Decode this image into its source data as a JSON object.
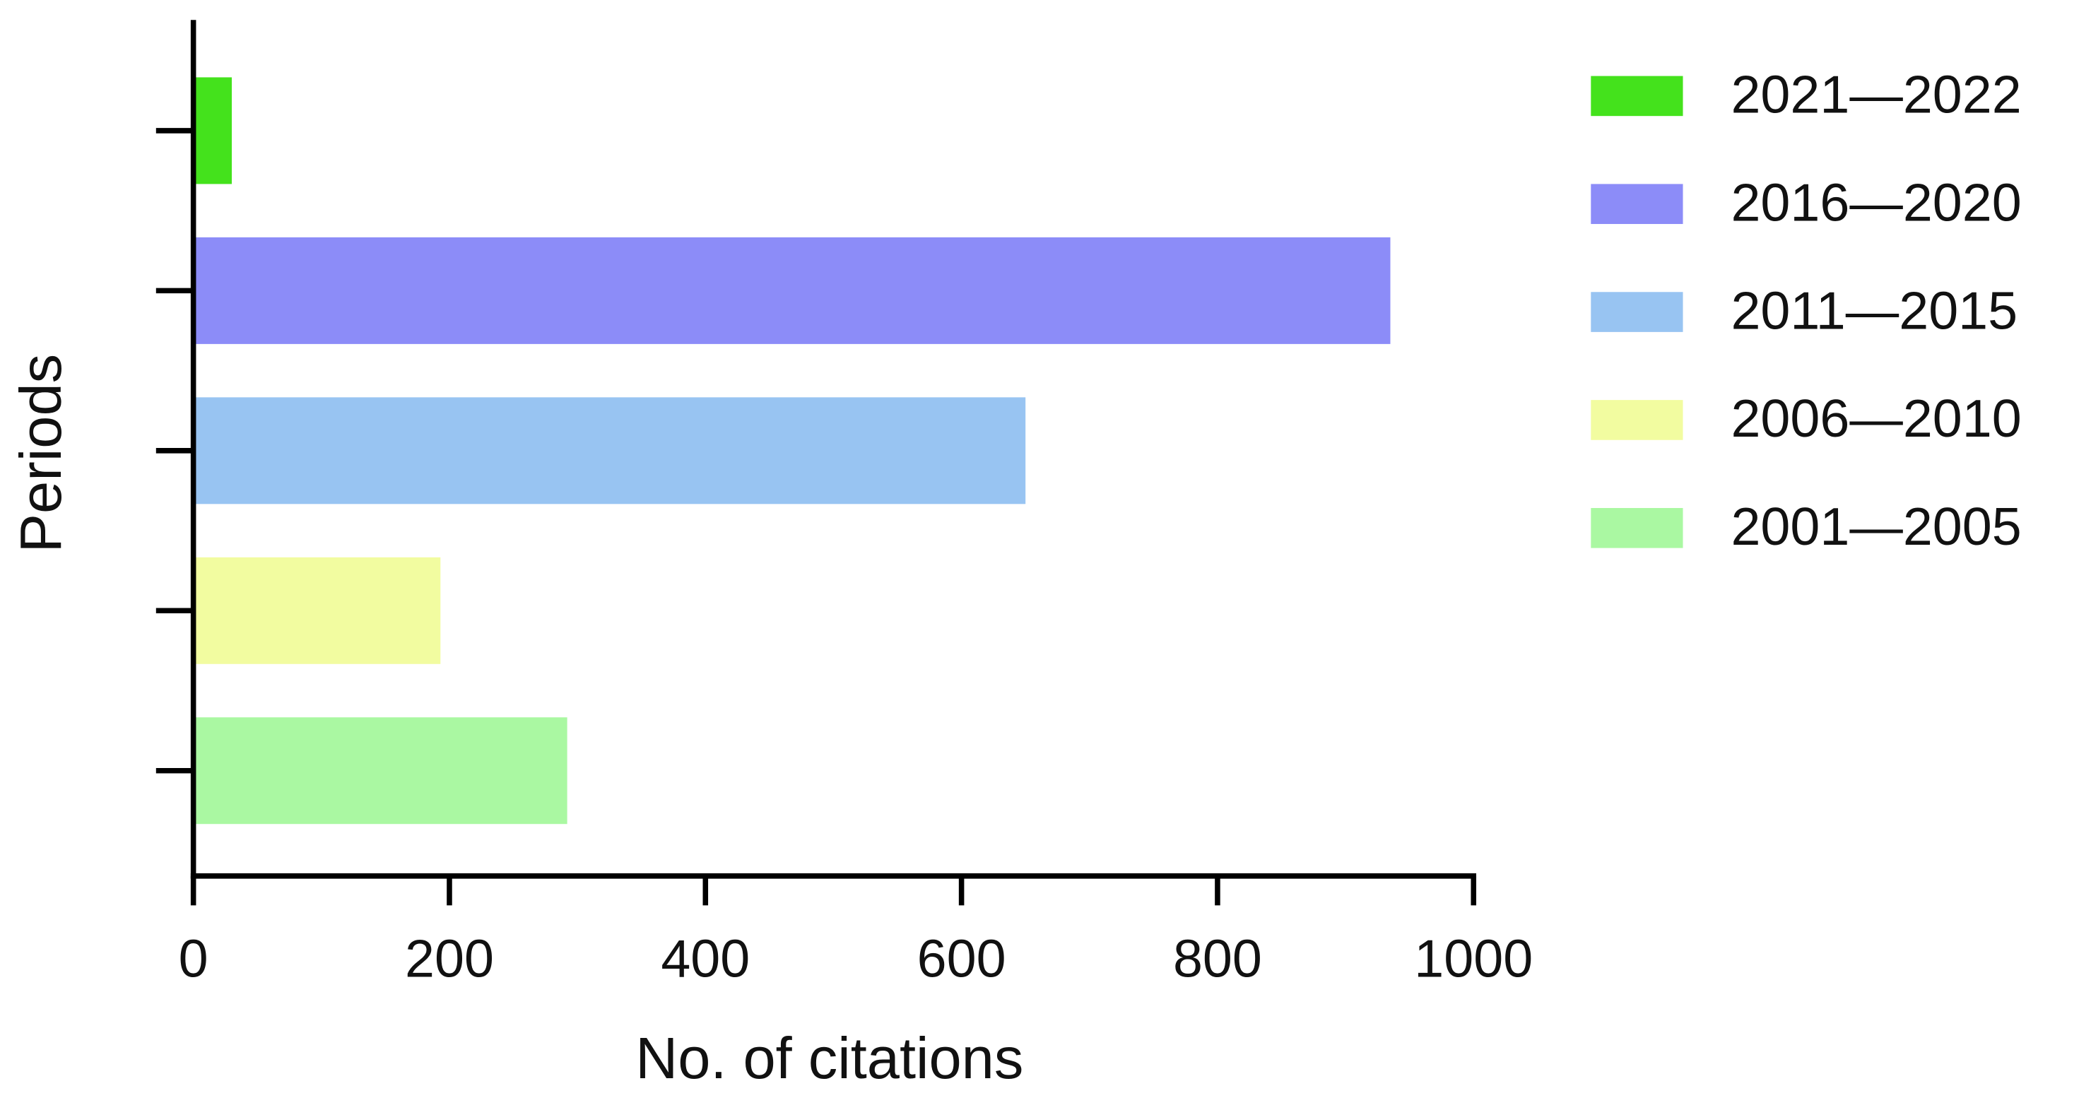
{
  "chart_data": {
    "type": "barh",
    "x_label": "No. of citations",
    "y_label": "Periods",
    "series": [
      {
        "name": "2021—2022",
        "color": "#44e21c",
        "values": [
          30
        ]
      },
      {
        "name": "2016—2020",
        "color": "#8c8cf8",
        "values": [
          935
        ]
      },
      {
        "name": "2011—2015",
        "color": "#98c4f2",
        "values": [
          650
        ]
      },
      {
        "name": "2006—2010",
        "color": "#f2fca0",
        "values": [
          193
        ]
      },
      {
        "name": "2001—2005",
        "color": "#aaf8a2",
        "values": [
          292
        ]
      }
    ],
    "xlim": [
      0,
      1000
    ],
    "xticks": [
      0,
      200,
      400,
      600,
      800,
      1000
    ],
    "legend": "right"
  }
}
